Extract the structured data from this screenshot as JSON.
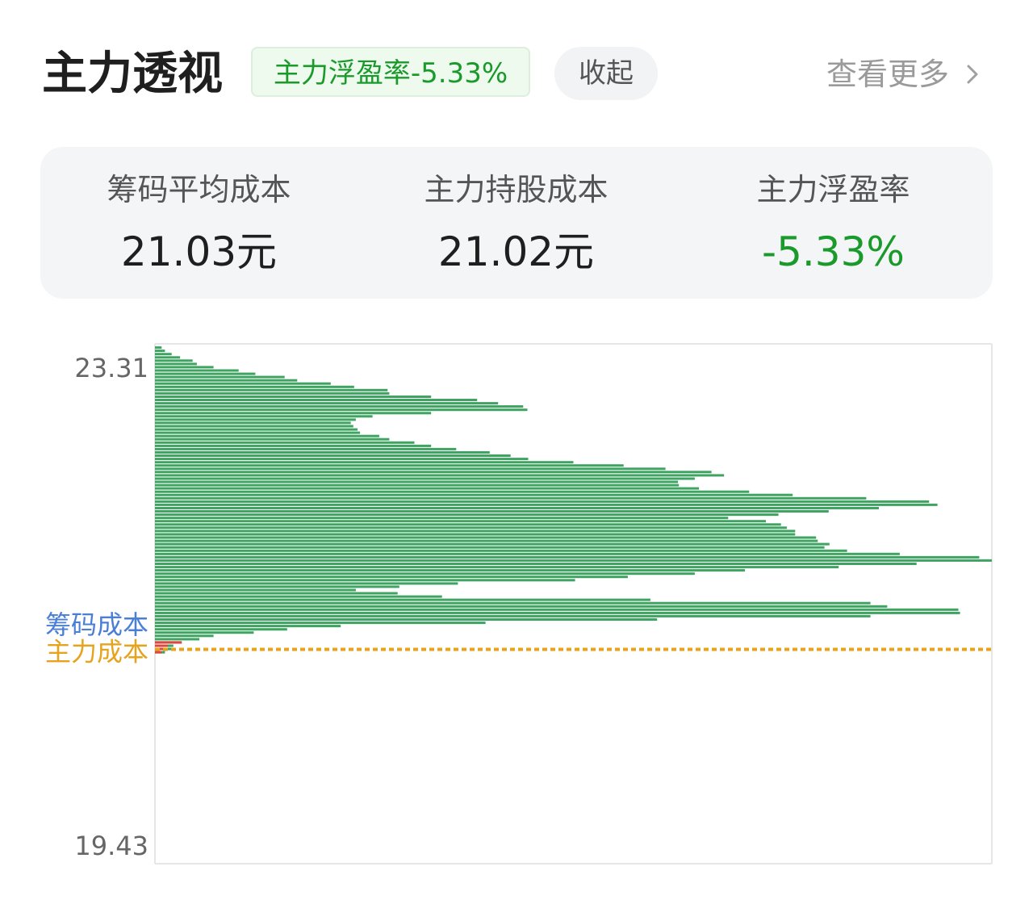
{
  "header": {
    "title": "主力透视",
    "badge": "主力浮盈率-5.33%",
    "collapse_label": "收起",
    "more_label": "查看更多"
  },
  "summary": {
    "items": [
      {
        "label": "筹码平均成本",
        "value": "21.03元"
      },
      {
        "label": "主力持股成本",
        "value": "21.02元"
      },
      {
        "label": "主力浮盈率",
        "value": "-5.33%"
      }
    ]
  },
  "colors": {
    "profit_green": "#1a9a2a",
    "bar_green": "#3fa362",
    "bar_red": "#e0453e",
    "chip_cost_blue": "#4a7fd6",
    "main_cost_orange": "#e6a41e"
  },
  "chart_data": {
    "type": "bar",
    "orientation": "horizontal",
    "title": "",
    "y_tick_labels": [
      "23.31",
      "19.43"
    ],
    "ylim": [
      19.28,
      23.5
    ],
    "price_step": 0.0266,
    "value_unit": "relative chip volume (max = 1.0)",
    "reference_lines": [
      {
        "name": "筹码成本",
        "value": 21.03,
        "color": "#4a7fd6"
      },
      {
        "name": "主力成本",
        "value": 21.02,
        "color": "#e6a41e",
        "style": "dashed"
      }
    ],
    "series": [
      {
        "color": "#3fa362",
        "values": [
          0.008,
          0.012,
          0.02,
          0.03,
          0.045,
          0.05,
          0.07,
          0.1,
          0.12,
          0.155,
          0.17,
          0.21,
          0.238,
          0.278,
          0.28,
          0.33,
          0.385,
          0.41,
          0.44,
          0.445,
          0.33,
          0.26,
          0.24,
          0.234,
          0.237,
          0.242,
          0.245,
          0.268,
          0.28,
          0.31,
          0.33,
          0.36,
          0.4,
          0.425,
          0.446,
          0.5,
          0.56,
          0.61,
          0.665,
          0.68,
          0.645,
          0.625,
          0.626,
          0.65,
          0.71,
          0.762,
          0.85,
          0.925,
          0.935,
          0.865,
          0.805,
          0.745,
          0.685,
          0.73,
          0.748,
          0.755,
          0.765,
          0.765,
          0.79,
          0.792,
          0.806,
          0.8,
          0.827,
          0.89,
          0.985,
          1.0,
          0.91,
          0.817,
          0.705,
          0.645,
          0.565,
          0.502,
          0.362,
          0.292,
          0.24,
          0.29,
          0.343,
          0.592,
          0.855,
          0.875,
          0.96,
          0.962,
          0.855,
          0.6,
          0.395,
          0.222,
          0.158,
          0.118,
          0.07,
          0.053,
          0.032,
          0.022,
          0.02,
          0.012
        ]
      },
      {
        "color": "#e0453e",
        "values": [
          0,
          0,
          0,
          0,
          0,
          0,
          0,
          0,
          0,
          0,
          0,
          0,
          0,
          0,
          0,
          0,
          0,
          0,
          0,
          0,
          0,
          0,
          0,
          0,
          0,
          0,
          0,
          0,
          0,
          0,
          0,
          0,
          0,
          0,
          0,
          0,
          0,
          0,
          0,
          0,
          0,
          0,
          0,
          0,
          0,
          0,
          0,
          0,
          0,
          0,
          0,
          0,
          0,
          0,
          0,
          0,
          0,
          0,
          0,
          0,
          0,
          0,
          0,
          0,
          0,
          0,
          0,
          0,
          0,
          0,
          0,
          0,
          0,
          0,
          0,
          0,
          0,
          0,
          0,
          0,
          0,
          0,
          0,
          0,
          0,
          0,
          0,
          0,
          0,
          0,
          0.032,
          0.015,
          0.012,
          0.008
        ]
      }
    ]
  }
}
